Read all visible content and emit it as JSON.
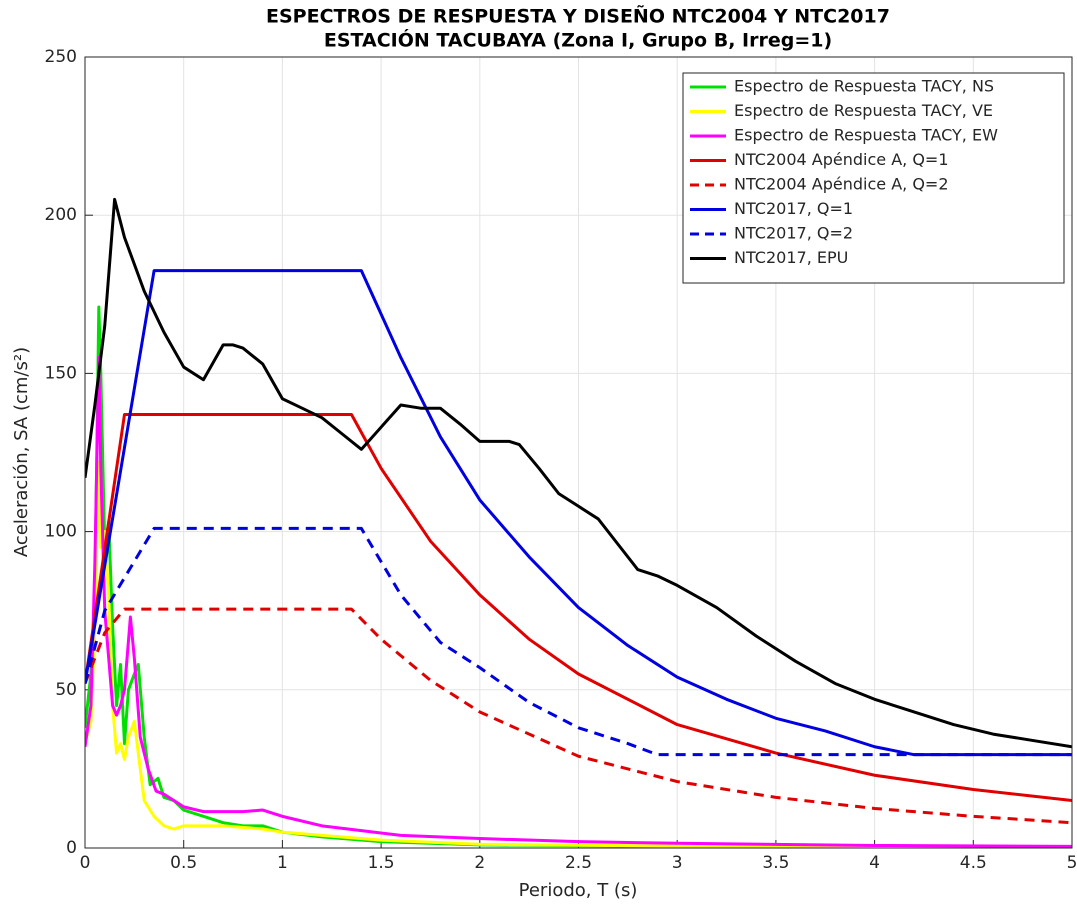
{
  "chart_data": {
    "type": "line",
    "title": "ESPECTROS DE RESPUESTA Y DISEÑO NTC2004 Y NTC2017",
    "subtitle": "ESTACIÓN TACUBAYA (Zona I, Grupo B, Irreg=1)",
    "xlabel": "Periodo, T (s)",
    "ylabel": "Aceleración, SA (cm/s²)",
    "xlim": [
      0,
      5
    ],
    "xticks": [
      0,
      0.5,
      1,
      1.5,
      2,
      2.5,
      3,
      3.5,
      4,
      4.5,
      5
    ],
    "ylim": [
      0,
      250
    ],
    "yticks": [
      0,
      50,
      100,
      150,
      200,
      250
    ],
    "grid": true,
    "legend": "top-right",
    "series": [
      {
        "name": "Espectro de Respuesta TACY, NS",
        "color": "#00e000",
        "dashed": false,
        "x": [
          0,
          0.03,
          0.05,
          0.07,
          0.08,
          0.1,
          0.12,
          0.14,
          0.16,
          0.18,
          0.2,
          0.22,
          0.25,
          0.27,
          0.3,
          0.33,
          0.37,
          0.4,
          0.45,
          0.5,
          0.6,
          0.7,
          0.8,
          0.9,
          1,
          1.2,
          1.5,
          2,
          3,
          4,
          5
        ],
        "values": [
          38,
          55,
          80,
          171,
          150,
          95,
          103,
          70,
          45,
          58,
          33,
          50,
          55,
          58,
          35,
          20,
          22,
          16,
          15,
          12,
          10,
          8,
          7,
          7,
          5,
          3.5,
          2,
          1,
          0.5,
          0.3,
          0.2
        ]
      },
      {
        "name": "Espectro de Respuesta TACY, VE",
        "color": "#ffff00",
        "dashed": false,
        "x": [
          0,
          0.03,
          0.05,
          0.07,
          0.08,
          0.1,
          0.12,
          0.14,
          0.16,
          0.18,
          0.2,
          0.22,
          0.25,
          0.3,
          0.35,
          0.4,
          0.45,
          0.5,
          0.7,
          0.9,
          1,
          1.2,
          1.5,
          2,
          3,
          4,
          5
        ],
        "values": [
          33,
          40,
          70,
          122,
          95,
          100,
          80,
          45,
          30,
          33,
          28,
          35,
          40,
          15,
          10,
          7,
          6,
          7,
          7,
          6,
          5,
          4,
          2.5,
          1.2,
          0.6,
          0.4,
          0.3
        ]
      },
      {
        "name": "Espectro de Respuesta TACY, EW",
        "color": "#ff00ff",
        "dashed": false,
        "x": [
          0,
          0.03,
          0.05,
          0.07,
          0.08,
          0.1,
          0.12,
          0.14,
          0.16,
          0.18,
          0.2,
          0.23,
          0.25,
          0.28,
          0.32,
          0.36,
          0.4,
          0.45,
          0.5,
          0.6,
          0.8,
          0.9,
          1,
          1.2,
          1.4,
          1.6,
          2,
          2.5,
          3,
          4,
          5
        ],
        "values": [
          32,
          45,
          90,
          155,
          120,
          75,
          60,
          45,
          42,
          45,
          50,
          73,
          60,
          35,
          25,
          18,
          17,
          15,
          13,
          11.5,
          11.5,
          12,
          10,
          7,
          5.5,
          4,
          3,
          2,
          1.5,
          0.8,
          0.5
        ]
      },
      {
        "name": "NTC2004 Apéndice A, Q=1",
        "color": "#e00000",
        "dashed": false,
        "x": [
          0,
          0.2,
          1.35,
          1.5,
          1.75,
          2,
          2.25,
          2.5,
          3,
          3.5,
          4,
          4.5,
          5
        ],
        "values": [
          52,
          137,
          137,
          120,
          97,
          80,
          66,
          55,
          39,
          30,
          23,
          18.5,
          15
        ]
      },
      {
        "name": "NTC2004 Apéndice A, Q=2",
        "color": "#e00000",
        "dashed": true,
        "x": [
          0,
          0.1,
          0.2,
          1.35,
          1.5,
          1.75,
          2,
          2.5,
          3,
          3.5,
          4,
          4.5,
          5
        ],
        "values": [
          52,
          68,
          75.5,
          75.5,
          66,
          53,
          43,
          29,
          21,
          16,
          12.5,
          10,
          8
        ]
      },
      {
        "name": "NTC2017, Q=1",
        "color": "#0000e0",
        "dashed": false,
        "x": [
          0,
          0.35,
          1.4,
          1.6,
          1.8,
          2,
          2.25,
          2.5,
          2.75,
          3,
          3.25,
          3.5,
          3.75,
          4,
          4.2,
          5
        ],
        "values": [
          52,
          182.5,
          182.5,
          155,
          130,
          110,
          92,
          76,
          64,
          54,
          47,
          41,
          37,
          32,
          29.5,
          29.5
        ]
      },
      {
        "name": "NTC2017, Q=2",
        "color": "#0000e0",
        "dashed": true,
        "x": [
          0,
          0.1,
          0.35,
          1.4,
          1.6,
          1.8,
          2,
          2.25,
          2.5,
          2.75,
          2.9,
          5
        ],
        "values": [
          52,
          75,
          101,
          101,
          80,
          65,
          57,
          46,
          38,
          33,
          29.5,
          29.5
        ]
      },
      {
        "name": "NTC2017, EPU",
        "color": "#000000",
        "dashed": false,
        "x": [
          0,
          0.05,
          0.1,
          0.15,
          0.2,
          0.3,
          0.4,
          0.5,
          0.6,
          0.7,
          0.75,
          0.8,
          0.9,
          1,
          1.1,
          1.2,
          1.3,
          1.4,
          1.5,
          1.6,
          1.7,
          1.8,
          1.9,
          2,
          2.15,
          2.2,
          2.3,
          2.4,
          2.5,
          2.6,
          2.7,
          2.8,
          2.9,
          3,
          3.2,
          3.4,
          3.6,
          3.8,
          4,
          4.2,
          4.4,
          4.6,
          4.8,
          5
        ],
        "values": [
          117,
          140,
          165,
          205,
          193,
          176,
          163,
          152,
          148,
          159,
          159,
          158,
          153,
          142,
          139,
          136,
          131,
          126,
          133,
          140,
          139,
          139,
          134,
          128.5,
          128.5,
          127.5,
          120,
          112,
          108,
          104,
          96,
          88,
          86,
          83,
          76,
          67,
          59,
          52,
          47,
          43,
          39,
          36,
          34,
          32
        ]
      }
    ]
  }
}
